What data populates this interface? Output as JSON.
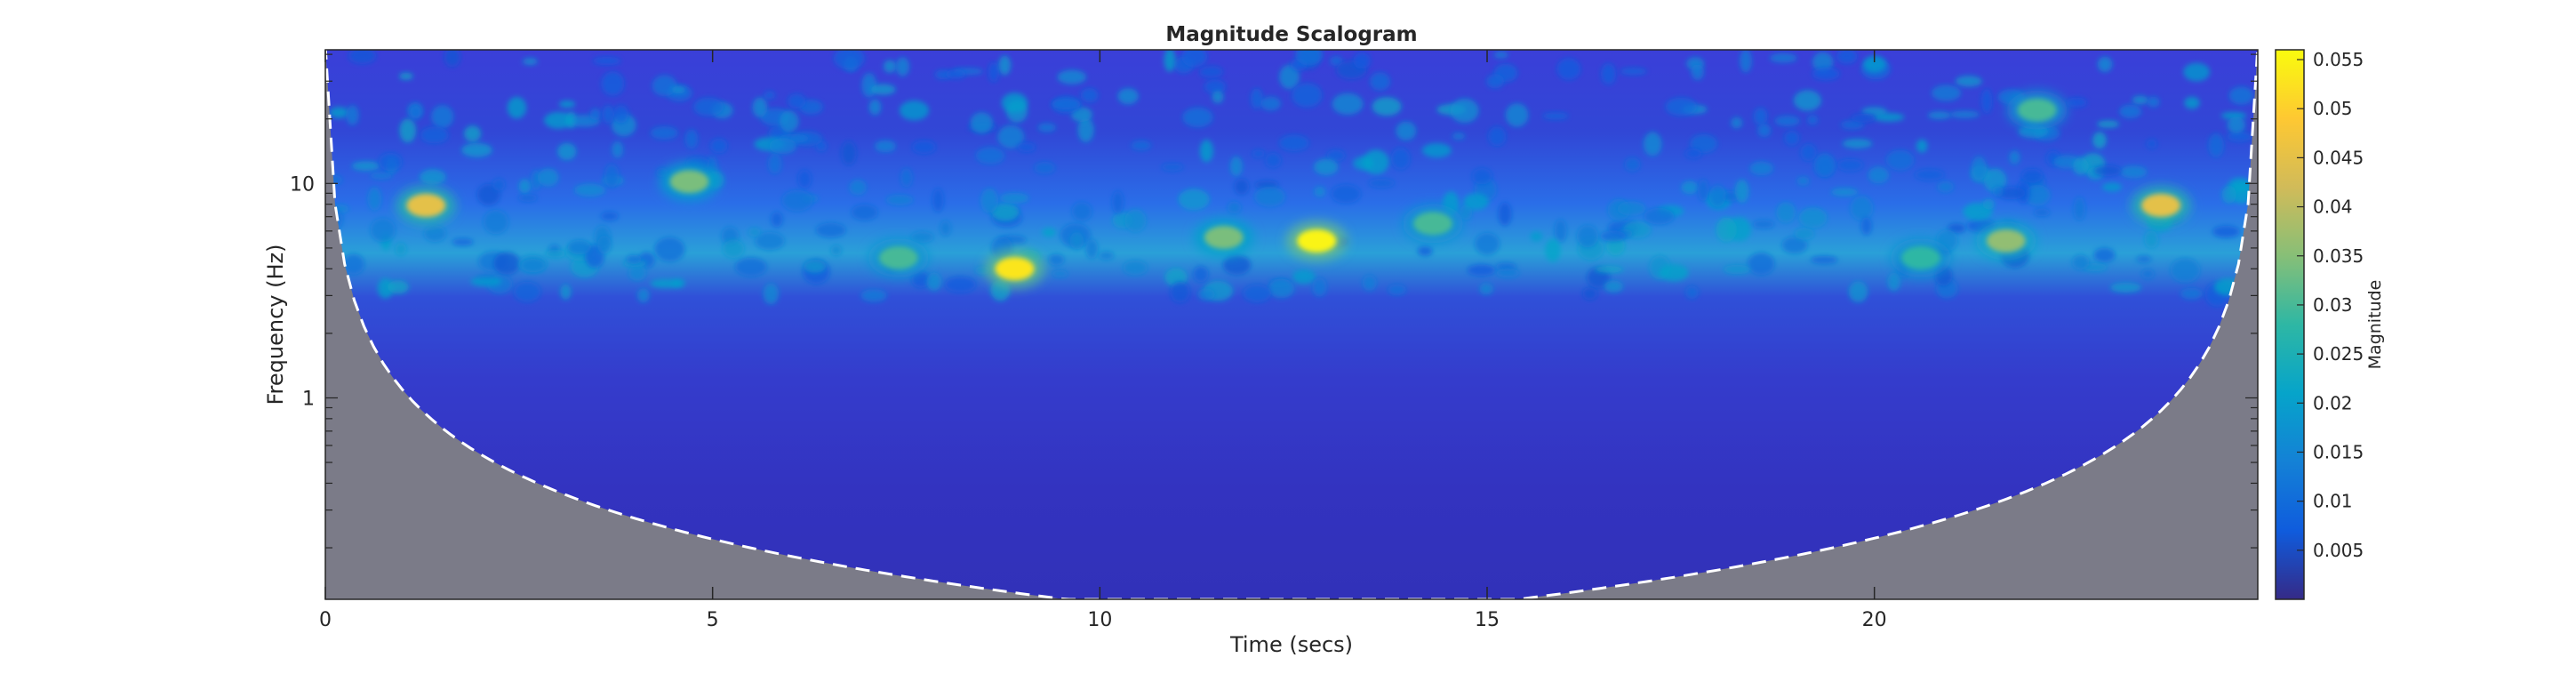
{
  "chart_data": {
    "type": "heatmap",
    "title": "Magnitude Scalogram",
    "xlabel": "Time (secs)",
    "ylabel": "Frequency (Hz)",
    "x_ticks": [
      0,
      5,
      10,
      15,
      20
    ],
    "y_ticks": [
      1,
      10
    ],
    "y_scale": "log",
    "xlim": [
      0,
      24.95
    ],
    "ylim": [
      0.115,
      42
    ],
    "colorbar": {
      "label": "Magnitude",
      "ticks": [
        0.005,
        0.01,
        0.015,
        0.02,
        0.025,
        0.03,
        0.035,
        0.04,
        0.045,
        0.05,
        0.055
      ],
      "range": [
        0,
        0.056
      ]
    },
    "colormap": "parula",
    "cone_of_influence": {
      "style": "dashed",
      "color": "#ffffff",
      "shade_color": "#808080"
    },
    "hotspots": [
      {
        "time": 1.3,
        "freq": 7.9,
        "magnitude": 0.045
      },
      {
        "time": 4.7,
        "freq": 10.2,
        "magnitude": 0.034
      },
      {
        "time": 8.9,
        "freq": 4.0,
        "magnitude": 0.053
      },
      {
        "time": 12.8,
        "freq": 5.4,
        "magnitude": 0.055
      },
      {
        "time": 11.6,
        "freq": 5.6,
        "magnitude": 0.034
      },
      {
        "time": 7.4,
        "freq": 4.5,
        "magnitude": 0.03
      },
      {
        "time": 21.7,
        "freq": 5.4,
        "magnitude": 0.036
      },
      {
        "time": 23.7,
        "freq": 7.9,
        "magnitude": 0.045
      },
      {
        "time": 22.1,
        "freq": 22.0,
        "magnitude": 0.03
      },
      {
        "time": 14.3,
        "freq": 6.5,
        "magnitude": 0.03
      },
      {
        "time": 20.6,
        "freq": 4.5,
        "magnitude": 0.028
      }
    ]
  }
}
